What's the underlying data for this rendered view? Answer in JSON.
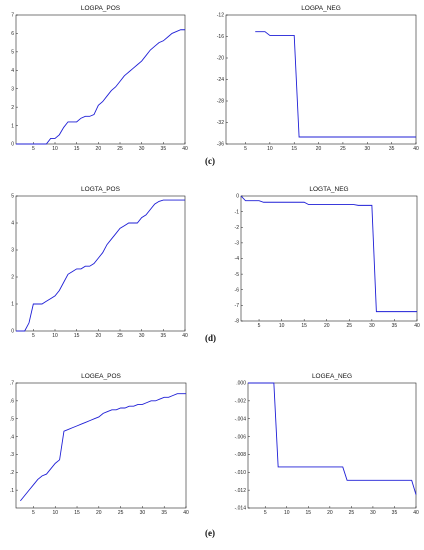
{
  "subfigure_labels": {
    "c": "(c)",
    "d": "(d)",
    "e": "(e)"
  },
  "chart_data": [
    {
      "type": "line",
      "title": "LOGPA_POS",
      "xlim": [
        1,
        40
      ],
      "ylim": [
        0,
        7
      ],
      "xticks": [
        5,
        10,
        15,
        20,
        25,
        30,
        35,
        40
      ],
      "yticks": [
        0,
        1,
        2,
        3,
        4,
        5,
        6,
        7
      ],
      "ytick_labels": [
        "0",
        "1",
        "2",
        "3",
        "4",
        "5",
        "6",
        "7"
      ],
      "series": [
        {
          "x": [
            1,
            2,
            3,
            4,
            5,
            6,
            7,
            8,
            9,
            10,
            11,
            12,
            13,
            14,
            15,
            16,
            17,
            18,
            19,
            20,
            21,
            22,
            23,
            24,
            25,
            26,
            27,
            28,
            29,
            30,
            31,
            32,
            33,
            34,
            35,
            36,
            37,
            38,
            39,
            40
          ],
          "y": [
            0,
            0,
            0,
            0,
            0,
            0,
            0,
            0,
            0.3,
            0.3,
            0.5,
            0.9,
            1.2,
            1.2,
            1.2,
            1.4,
            1.5,
            1.5,
            1.6,
            2.1,
            2.3,
            2.6,
            2.9,
            3.1,
            3.4,
            3.7,
            3.9,
            4.1,
            4.3,
            4.5,
            4.8,
            5.1,
            5.3,
            5.5,
            5.6,
            5.8,
            6.0,
            6.1,
            6.2,
            6.2
          ]
        }
      ]
    },
    {
      "type": "line",
      "title": "LOGPA_NEG",
      "xlim": [
        1,
        40
      ],
      "ylim": [
        -36,
        -12
      ],
      "xticks": [
        5,
        10,
        15,
        20,
        25,
        30,
        35,
        40
      ],
      "yticks": [
        -12,
        -16,
        -20,
        -24,
        -28,
        -32,
        -36
      ],
      "ytick_labels": [
        "-12",
        "-16",
        "-20",
        "-24",
        "-28",
        "-32",
        "-36"
      ],
      "series": [
        {
          "x": [
            7,
            8,
            9,
            10,
            11,
            12,
            13,
            14,
            15,
            16,
            17,
            18,
            19,
            20,
            21,
            22,
            23,
            24,
            25,
            26,
            27,
            28,
            29,
            30,
            31,
            32,
            33,
            34,
            35,
            36,
            37,
            38,
            39,
            40
          ],
          "y": [
            -15.1,
            -15.1,
            -15.1,
            -15.8,
            -15.8,
            -15.8,
            -15.8,
            -15.8,
            -15.8,
            -34.7,
            -34.7,
            -34.7,
            -34.7,
            -34.7,
            -34.7,
            -34.7,
            -34.7,
            -34.7,
            -34.7,
            -34.7,
            -34.7,
            -34.7,
            -34.7,
            -34.7,
            -34.7,
            -34.7,
            -34.7,
            -34.7,
            -34.7,
            -34.7,
            -34.7,
            -34.7,
            -34.7,
            -34.7
          ]
        }
      ]
    },
    {
      "type": "line",
      "title": "LOGTA_POS",
      "xlim": [
        1,
        40
      ],
      "ylim": [
        0,
        5
      ],
      "xticks": [
        5,
        10,
        15,
        20,
        25,
        30,
        35,
        40
      ],
      "yticks": [
        0,
        1,
        2,
        3,
        4,
        5
      ],
      "ytick_labels": [
        "0",
        "1",
        "2",
        "3",
        "4",
        "5"
      ],
      "series": [
        {
          "x": [
            1,
            2,
            3,
            4,
            5,
            6,
            7,
            8,
            9,
            10,
            11,
            12,
            13,
            14,
            15,
            16,
            17,
            18,
            19,
            20,
            21,
            22,
            23,
            24,
            25,
            26,
            27,
            28,
            29,
            30,
            31,
            32,
            33,
            34,
            35,
            36,
            37,
            38,
            39,
            40
          ],
          "y": [
            0,
            0,
            0,
            0.3,
            1.0,
            1.0,
            1.0,
            1.1,
            1.2,
            1.3,
            1.5,
            1.8,
            2.1,
            2.2,
            2.3,
            2.3,
            2.4,
            2.4,
            2.5,
            2.7,
            2.9,
            3.2,
            3.4,
            3.6,
            3.8,
            3.9,
            4.0,
            4.0,
            4.0,
            4.2,
            4.3,
            4.5,
            4.7,
            4.8,
            4.85,
            4.85,
            4.85,
            4.85,
            4.85,
            4.85
          ]
        }
      ]
    },
    {
      "type": "line",
      "title": "LOGTA_NEG",
      "xlim": [
        1,
        40
      ],
      "ylim": [
        -8,
        0
      ],
      "xticks": [
        5,
        10,
        15,
        20,
        25,
        30,
        35,
        40
      ],
      "yticks": [
        0,
        -1,
        -2,
        -3,
        -4,
        -5,
        -6,
        -7,
        -8
      ],
      "ytick_labels": [
        "0",
        "-1",
        "-2",
        "-3",
        "-4",
        "-5",
        "-6",
        "-7",
        "-8"
      ],
      "series": [
        {
          "x": [
            1,
            2,
            3,
            4,
            5,
            6,
            7,
            8,
            9,
            10,
            11,
            12,
            13,
            14,
            15,
            16,
            17,
            18,
            19,
            20,
            21,
            22,
            23,
            24,
            25,
            26,
            27,
            28,
            29,
            30,
            31,
            32,
            33,
            34,
            35,
            36,
            37,
            38,
            39,
            40
          ],
          "y": [
            0,
            -0.3,
            -0.3,
            -0.3,
            -0.3,
            -0.4,
            -0.4,
            -0.4,
            -0.4,
            -0.4,
            -0.4,
            -0.4,
            -0.4,
            -0.4,
            -0.4,
            -0.55,
            -0.55,
            -0.55,
            -0.55,
            -0.55,
            -0.55,
            -0.55,
            -0.55,
            -0.55,
            -0.55,
            -0.55,
            -0.6,
            -0.6,
            -0.6,
            -0.6,
            -7.4,
            -7.4,
            -7.4,
            -7.4,
            -7.4,
            -7.4,
            -7.4,
            -7.4,
            -7.4,
            -7.4
          ]
        }
      ]
    },
    {
      "type": "line",
      "title": "LOGEA_POS",
      "xlim": [
        1,
        40
      ],
      "ylim": [
        0,
        0.7
      ],
      "xticks": [
        5,
        10,
        15,
        20,
        25,
        30,
        35,
        40
      ],
      "yticks": [
        0.1,
        0.2,
        0.3,
        0.4,
        0.5,
        0.6,
        0.7
      ],
      "ytick_labels": [
        ".1",
        ".2",
        ".3",
        ".4",
        ".5",
        ".6",
        ".7"
      ],
      "series": [
        {
          "x": [
            2,
            3,
            4,
            5,
            6,
            7,
            8,
            9,
            10,
            11,
            12,
            13,
            14,
            15,
            16,
            17,
            18,
            19,
            20,
            21,
            22,
            23,
            24,
            25,
            26,
            27,
            28,
            29,
            30,
            31,
            32,
            33,
            34,
            35,
            36,
            37,
            38,
            39,
            40
          ],
          "y": [
            0.04,
            0.07,
            0.1,
            0.13,
            0.16,
            0.18,
            0.19,
            0.22,
            0.25,
            0.27,
            0.43,
            0.44,
            0.45,
            0.46,
            0.47,
            0.48,
            0.49,
            0.5,
            0.51,
            0.53,
            0.54,
            0.55,
            0.55,
            0.56,
            0.56,
            0.57,
            0.57,
            0.58,
            0.58,
            0.59,
            0.6,
            0.6,
            0.61,
            0.62,
            0.62,
            0.63,
            0.64,
            0.64,
            0.64
          ]
        }
      ]
    },
    {
      "type": "line",
      "title": "LOGEA_NEG",
      "xlim": [
        1,
        40
      ],
      "ylim": [
        -0.014,
        0
      ],
      "xticks": [
        5,
        10,
        15,
        20,
        25,
        30,
        35,
        40
      ],
      "yticks": [
        0,
        -0.002,
        -0.004,
        -0.006,
        -0.008,
        -0.01,
        -0.012,
        -0.014
      ],
      "ytick_labels": [
        ".000",
        "-.002",
        "-.004",
        "-.006",
        "-.008",
        "-.010",
        "-.012",
        "-.014"
      ],
      "series": [
        {
          "x": [
            1,
            2,
            3,
            4,
            5,
            6,
            7,
            8,
            9,
            10,
            11,
            12,
            13,
            14,
            15,
            16,
            17,
            18,
            19,
            20,
            21,
            22,
            23,
            24,
            25,
            26,
            27,
            28,
            29,
            30,
            31,
            32,
            33,
            34,
            35,
            36,
            37,
            38,
            39,
            40
          ],
          "y": [
            0,
            0,
            0,
            0,
            0,
            0,
            0,
            -0.0094,
            -0.0094,
            -0.0094,
            -0.0094,
            -0.0094,
            -0.0094,
            -0.0094,
            -0.0094,
            -0.0094,
            -0.0094,
            -0.0094,
            -0.0094,
            -0.0094,
            -0.0094,
            -0.0094,
            -0.0094,
            -0.0109,
            -0.0109,
            -0.0109,
            -0.0109,
            -0.0109,
            -0.0109,
            -0.0109,
            -0.0109,
            -0.0109,
            -0.0109,
            -0.0109,
            -0.0109,
            -0.0109,
            -0.0109,
            -0.0109,
            -0.0109,
            -0.0125
          ]
        }
      ]
    }
  ]
}
